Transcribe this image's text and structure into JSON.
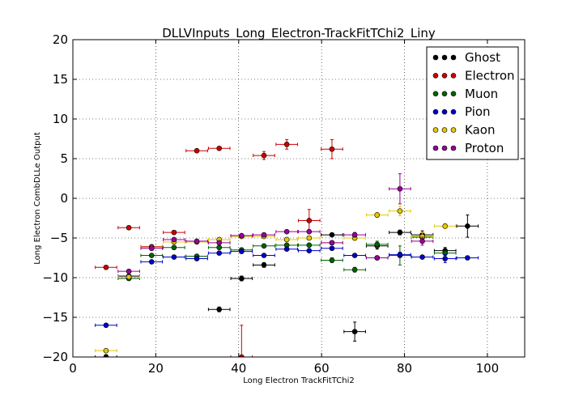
{
  "chart_data": {
    "type": "scatter",
    "title": "DLLVInputs_Long_Electron-TrackFitTChi2_Liny",
    "xlabel": "Long Electron TrackFitTChi2",
    "ylabel": "Long Electron CombDLLe Output",
    "xlim": [
      0,
      109
    ],
    "ylim": [
      -20,
      20
    ],
    "xticks": [
      0,
      20,
      40,
      60,
      80,
      100
    ],
    "yticks": [
      -20,
      -15,
      -10,
      -5,
      0,
      5,
      10,
      15,
      20
    ],
    "xtick_labels": [
      "0",
      "20",
      "40",
      "60",
      "80",
      "100"
    ],
    "ytick_labels": [
      "−20",
      "−15",
      "−10",
      "−5",
      "0",
      "5",
      "10",
      "15",
      "20"
    ],
    "grid": true,
    "legend_position": "top-right",
    "series": [
      {
        "name": "Ghost",
        "color": "#000000",
        "points": [
          {
            "x": 8.0,
            "y": -20.0,
            "xerr": 2.6,
            "yerr": 0.3
          },
          {
            "x": 35.3,
            "y": -14.0,
            "xerr": 2.6,
            "yerr": 0.3
          },
          {
            "x": 40.7,
            "y": -10.1,
            "xerr": 2.6,
            "yerr": 0.3
          },
          {
            "x": 46.1,
            "y": -8.4,
            "xerr": 2.6,
            "yerr": 0.3
          },
          {
            "x": 62.5,
            "y": -4.6,
            "xerr": 2.6,
            "yerr": 0.2
          },
          {
            "x": 68.0,
            "y": -16.8,
            "xerr": 2.6,
            "yerr": 1.2
          },
          {
            "x": 73.4,
            "y": -6.0,
            "xerr": 2.6,
            "yerr": 0.4
          },
          {
            "x": 78.9,
            "y": -4.3,
            "xerr": 2.6,
            "yerr": 0.3
          },
          {
            "x": 84.3,
            "y": -4.6,
            "xerr": 2.6,
            "yerr": 0.5
          },
          {
            "x": 89.8,
            "y": -6.6,
            "xerr": 2.6,
            "yerr": 0.4
          },
          {
            "x": 95.2,
            "y": -3.5,
            "xerr": 2.6,
            "yerr": 1.4
          }
        ]
      },
      {
        "name": "Electron",
        "color": "#cc0000",
        "points": [
          {
            "x": 8.0,
            "y": -8.7,
            "xerr": 2.6,
            "yerr": 0.2
          },
          {
            "x": 13.5,
            "y": -3.7,
            "xerr": 2.6,
            "yerr": 0.2
          },
          {
            "x": 19.0,
            "y": -6.1,
            "xerr": 2.6,
            "yerr": 0.2
          },
          {
            "x": 24.4,
            "y": -4.3,
            "xerr": 2.6,
            "yerr": 0.2
          },
          {
            "x": 29.9,
            "y": 6.0,
            "xerr": 2.6,
            "yerr": 0.2
          },
          {
            "x": 35.3,
            "y": 6.3,
            "xerr": 2.6,
            "yerr": 0.2
          },
          {
            "x": 40.7,
            "y": -20.0,
            "xerr": 2.6,
            "yerr": 4.0
          },
          {
            "x": 46.1,
            "y": 5.4,
            "xerr": 2.6,
            "yerr": 0.5
          },
          {
            "x": 51.6,
            "y": 6.8,
            "xerr": 2.6,
            "yerr": 0.6
          },
          {
            "x": 57.0,
            "y": -2.8,
            "xerr": 2.6,
            "yerr": 1.4
          },
          {
            "x": 62.5,
            "y": 6.2,
            "xerr": 2.6,
            "yerr": 1.2
          }
        ]
      },
      {
        "name": "Muon",
        "color": "#006400",
        "points": [
          {
            "x": 13.5,
            "y": -10.1,
            "xerr": 2.6,
            "yerr": 0.2
          },
          {
            "x": 19.0,
            "y": -7.2,
            "xerr": 2.6,
            "yerr": 0.2
          },
          {
            "x": 24.4,
            "y": -6.2,
            "xerr": 2.6,
            "yerr": 0.2
          },
          {
            "x": 29.9,
            "y": -7.3,
            "xerr": 2.6,
            "yerr": 0.2
          },
          {
            "x": 35.3,
            "y": -6.2,
            "xerr": 2.6,
            "yerr": 0.2
          },
          {
            "x": 40.7,
            "y": -6.5,
            "xerr": 2.6,
            "yerr": 0.2
          },
          {
            "x": 46.1,
            "y": -6.0,
            "xerr": 2.6,
            "yerr": 0.2
          },
          {
            "x": 51.6,
            "y": -5.9,
            "xerr": 2.6,
            "yerr": 0.2
          },
          {
            "x": 57.0,
            "y": -5.9,
            "xerr": 2.6,
            "yerr": 0.2
          },
          {
            "x": 62.5,
            "y": -7.8,
            "xerr": 2.6,
            "yerr": 0.3
          },
          {
            "x": 68.0,
            "y": -9.0,
            "xerr": 2.6,
            "yerr": 0.3
          },
          {
            "x": 73.4,
            "y": -5.8,
            "xerr": 2.6,
            "yerr": 0.4
          },
          {
            "x": 78.9,
            "y": -7.2,
            "xerr": 2.6,
            "yerr": 1.2
          },
          {
            "x": 84.3,
            "y": -4.9,
            "xerr": 2.6,
            "yerr": 0.4
          },
          {
            "x": 89.8,
            "y": -6.9,
            "xerr": 2.6,
            "yerr": 0.3
          }
        ]
      },
      {
        "name": "Pion",
        "color": "#0000cc",
        "points": [
          {
            "x": 8.0,
            "y": -16.0,
            "xerr": 2.6,
            "yerr": 0.2
          },
          {
            "x": 13.5,
            "y": -9.8,
            "xerr": 2.6,
            "yerr": 0.2
          },
          {
            "x": 19.0,
            "y": -8.0,
            "xerr": 2.6,
            "yerr": 0.2
          },
          {
            "x": 24.4,
            "y": -7.4,
            "xerr": 2.6,
            "yerr": 0.2
          },
          {
            "x": 29.9,
            "y": -7.6,
            "xerr": 2.6,
            "yerr": 0.2
          },
          {
            "x": 35.3,
            "y": -6.9,
            "xerr": 2.6,
            "yerr": 0.2
          },
          {
            "x": 40.7,
            "y": -6.7,
            "xerr": 2.6,
            "yerr": 0.2
          },
          {
            "x": 46.1,
            "y": -7.2,
            "xerr": 2.6,
            "yerr": 0.2
          },
          {
            "x": 51.6,
            "y": -6.4,
            "xerr": 2.6,
            "yerr": 0.2
          },
          {
            "x": 57.0,
            "y": -6.6,
            "xerr": 2.6,
            "yerr": 0.2
          },
          {
            "x": 62.5,
            "y": -6.3,
            "xerr": 2.6,
            "yerr": 0.2
          },
          {
            "x": 68.0,
            "y": -7.2,
            "xerr": 2.6,
            "yerr": 0.2
          },
          {
            "x": 73.4,
            "y": -7.5,
            "xerr": 2.6,
            "yerr": 0.2
          },
          {
            "x": 78.9,
            "y": -7.1,
            "xerr": 2.6,
            "yerr": 0.3
          },
          {
            "x": 84.3,
            "y": -7.4,
            "xerr": 2.6,
            "yerr": 0.2
          },
          {
            "x": 89.8,
            "y": -7.6,
            "xerr": 2.6,
            "yerr": 0.5
          },
          {
            "x": 95.2,
            "y": -7.5,
            "xerr": 2.6,
            "yerr": 0.2
          }
        ]
      },
      {
        "name": "Kaon",
        "color": "#e6c800",
        "points": [
          {
            "x": 8.0,
            "y": -19.2,
            "xerr": 2.6,
            "yerr": 0.2
          },
          {
            "x": 13.5,
            "y": -9.9,
            "xerr": 2.6,
            "yerr": 0.2
          },
          {
            "x": 19.0,
            "y": -6.2,
            "xerr": 2.6,
            "yerr": 0.2
          },
          {
            "x": 24.4,
            "y": -5.5,
            "xerr": 2.6,
            "yerr": 0.2
          },
          {
            "x": 29.9,
            "y": -5.5,
            "xerr": 2.6,
            "yerr": 0.2
          },
          {
            "x": 35.3,
            "y": -5.2,
            "xerr": 2.6,
            "yerr": 0.2
          },
          {
            "x": 40.7,
            "y": -4.8,
            "xerr": 2.6,
            "yerr": 0.2
          },
          {
            "x": 46.1,
            "y": -4.8,
            "xerr": 2.6,
            "yerr": 0.2
          },
          {
            "x": 51.6,
            "y": -5.2,
            "xerr": 2.6,
            "yerr": 0.2
          },
          {
            "x": 57.0,
            "y": -5.0,
            "xerr": 2.6,
            "yerr": 0.2
          },
          {
            "x": 62.5,
            "y": -5.6,
            "xerr": 2.6,
            "yerr": 0.2
          },
          {
            "x": 68.0,
            "y": -5.0,
            "xerr": 2.6,
            "yerr": 0.3
          },
          {
            "x": 73.4,
            "y": -2.1,
            "xerr": 2.6,
            "yerr": 0.3
          },
          {
            "x": 78.9,
            "y": -1.6,
            "xerr": 2.6,
            "yerr": 0.6
          },
          {
            "x": 84.3,
            "y": -4.8,
            "xerr": 2.6,
            "yerr": 0.5
          },
          {
            "x": 89.8,
            "y": -3.5,
            "xerr": 2.6,
            "yerr": 0.3
          }
        ]
      },
      {
        "name": "Proton",
        "color": "#990099",
        "points": [
          {
            "x": 13.5,
            "y": -9.2,
            "xerr": 2.6,
            "yerr": 0.2
          },
          {
            "x": 19.0,
            "y": -6.3,
            "xerr": 2.6,
            "yerr": 0.2
          },
          {
            "x": 24.4,
            "y": -5.2,
            "xerr": 2.6,
            "yerr": 0.2
          },
          {
            "x": 29.9,
            "y": -5.4,
            "xerr": 2.6,
            "yerr": 0.2
          },
          {
            "x": 35.3,
            "y": -5.6,
            "xerr": 2.6,
            "yerr": 0.2
          },
          {
            "x": 40.7,
            "y": -4.7,
            "xerr": 2.6,
            "yerr": 0.2
          },
          {
            "x": 46.1,
            "y": -4.6,
            "xerr": 2.6,
            "yerr": 0.2
          },
          {
            "x": 51.6,
            "y": -4.2,
            "xerr": 2.6,
            "yerr": 0.2
          },
          {
            "x": 57.0,
            "y": -4.2,
            "xerr": 2.6,
            "yerr": 0.2
          },
          {
            "x": 62.5,
            "y": -5.6,
            "xerr": 2.6,
            "yerr": 0.2
          },
          {
            "x": 68.0,
            "y": -4.6,
            "xerr": 2.6,
            "yerr": 0.3
          },
          {
            "x": 73.4,
            "y": -7.5,
            "xerr": 2.6,
            "yerr": 0.2
          },
          {
            "x": 78.9,
            "y": 1.2,
            "xerr": 2.6,
            "yerr": 1.9
          },
          {
            "x": 84.3,
            "y": -5.4,
            "xerr": 2.6,
            "yerr": 0.5
          }
        ]
      }
    ]
  }
}
